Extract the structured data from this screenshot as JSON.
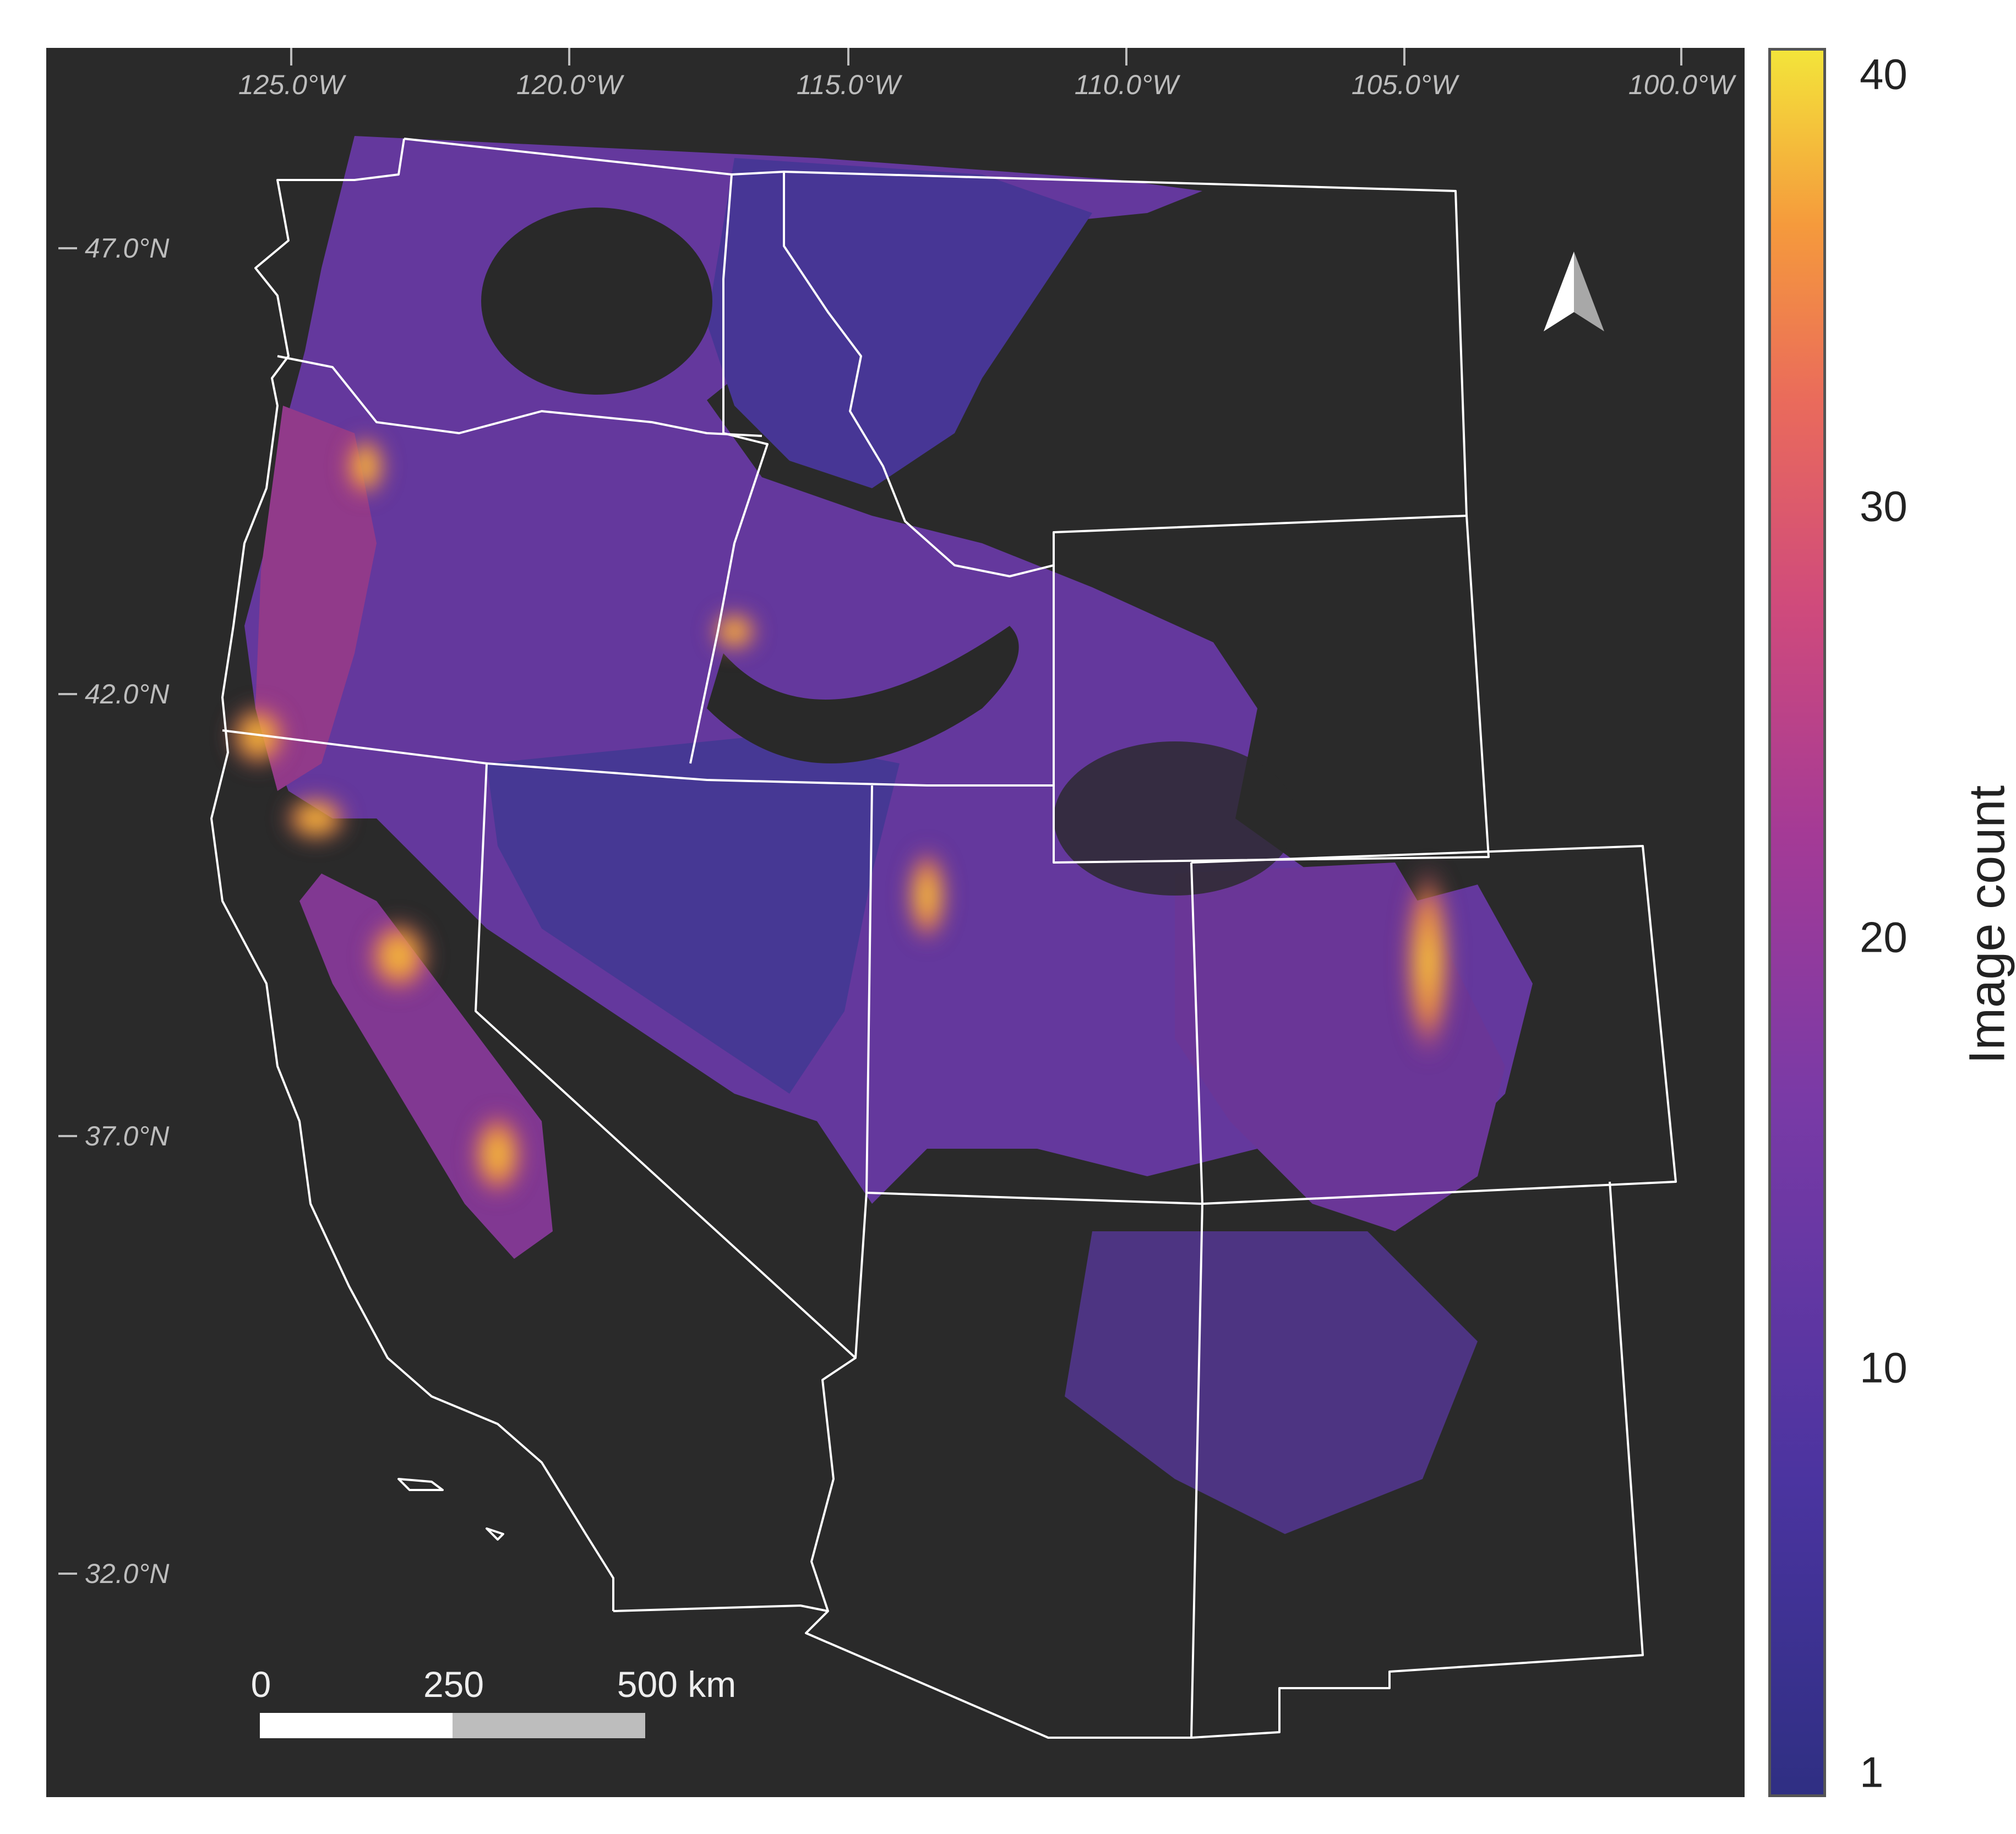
{
  "map": {
    "longitude_labels": [
      "125.0°W",
      "120.0°W",
      "115.0°W",
      "110.0°W",
      "105.0°W",
      "100.0°W"
    ],
    "latitude_labels": [
      "47.0°N",
      "42.0°N",
      "37.0°N",
      "32.0°N"
    ],
    "background_color": "#2a2a2a",
    "boundary_color": "#ffffff"
  },
  "scale_bar": {
    "labels": [
      "0",
      "250",
      "500 km"
    ],
    "colors": [
      "#ffffff",
      "#bdbdbd"
    ]
  },
  "north_arrow": {
    "icon": "north-arrow-icon"
  },
  "legend": {
    "title": "Image count",
    "ticks": [
      "40",
      "30",
      "20",
      "10",
      "1"
    ],
    "colormap": "plasma",
    "range": [
      1,
      40
    ]
  }
}
